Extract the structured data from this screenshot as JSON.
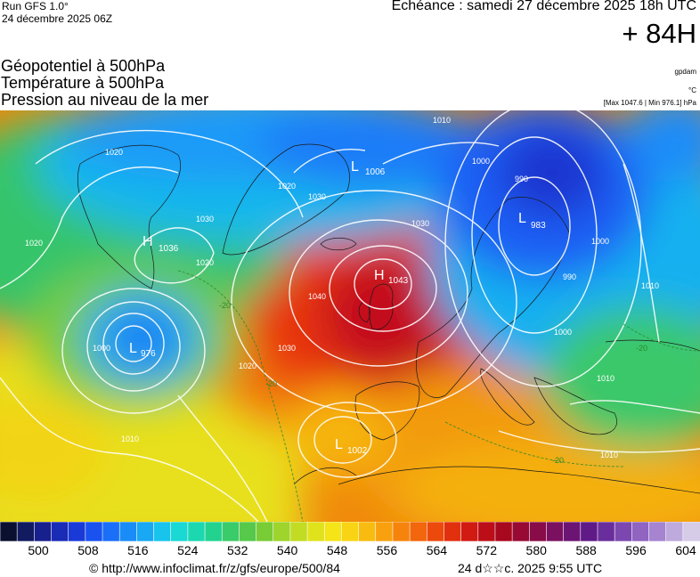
{
  "header": {
    "run": "Run GFS 1.0°",
    "run_date": "24 décembre 2025 06Z",
    "echeance": "Echéance : samedi 27 décembre 2025 18h UTC",
    "hour": "+ 84H"
  },
  "params": [
    "Géopotentiel à 500hPa",
    "Température à 500hPa",
    "Pression au niveau de la mer"
  ],
  "units": {
    "geopotential": "gpdam",
    "temperature": "°C",
    "pressure_range": "[Max 1047.6 | Min 976.1] hPa"
  },
  "centers": [
    {
      "type": "H",
      "value": "1036"
    },
    {
      "type": "L",
      "value": "976"
    },
    {
      "type": "H",
      "value": "1043"
    },
    {
      "type": "L",
      "value": "983"
    },
    {
      "type": "L",
      "value": "1006"
    },
    {
      "type": "L",
      "value": "1002"
    }
  ],
  "isobar_labels": [
    "1020",
    "1030",
    "1020",
    "1030",
    "1020",
    "1040",
    "1030",
    "1020",
    "1010",
    "1000",
    "990",
    "1000",
    "990",
    "1000",
    "1010",
    "1010",
    "1010",
    "1000",
    "1020",
    "1010",
    "1030"
  ],
  "temp_labels": [
    "-20",
    "-20",
    "-20",
    "-20"
  ],
  "scale": {
    "colors": [
      "#0b0f30",
      "#121a60",
      "#18208d",
      "#1a2bb5",
      "#1a3ad8",
      "#1a52f0",
      "#1a6ef8",
      "#1a8cf8",
      "#18a8f4",
      "#18c4ec",
      "#1ad8d4",
      "#1cd8b0",
      "#24d290",
      "#3acb6a",
      "#56c84a",
      "#78cc36",
      "#9ed42c",
      "#c2dc24",
      "#e0e21c",
      "#f4e418",
      "#f8d414",
      "#f8bc10",
      "#f8a00e",
      "#f6840c",
      "#f2660c",
      "#ec4a0c",
      "#e0300e",
      "#d01a12",
      "#bc0e18",
      "#a8081e",
      "#980a34",
      "#880c48",
      "#7c1060",
      "#6c1474",
      "#601a88",
      "#6a2e9c",
      "#7c48b0",
      "#9064c0",
      "#a684d0",
      "#beaadc",
      "#d6cce8"
    ],
    "labels": [
      "500",
      "508",
      "516",
      "524",
      "532",
      "540",
      "548",
      "556",
      "564",
      "572",
      "580",
      "588",
      "596",
      "604"
    ]
  },
  "footer": {
    "credit": "© http://www.infoclimat.fr/z/gfs/europe/500/84",
    "stamp": "24 d☆☆c. 2025  9:55 UTC"
  }
}
